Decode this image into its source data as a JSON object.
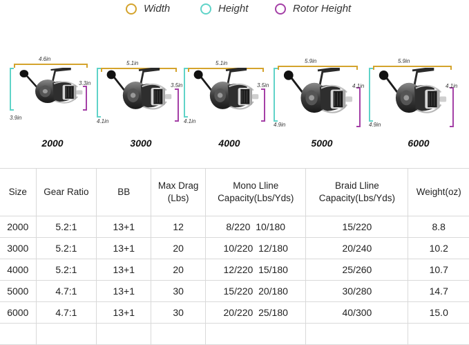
{
  "legend": [
    {
      "label": "Width",
      "color": "#d4a32c"
    },
    {
      "label": "Height",
      "color": "#5fd3c8"
    },
    {
      "label": "Rotor Height",
      "color": "#a43fa6"
    }
  ],
  "reels": [
    {
      "model": "2000",
      "width": "4.6in",
      "height": "3.9in",
      "rotor_height": "3.3in"
    },
    {
      "model": "3000",
      "width": "5.1in",
      "height": "4.1in",
      "rotor_height": "3.5in"
    },
    {
      "model": "4000",
      "width": "5.1in",
      "height": "4.1in",
      "rotor_height": "3.5in"
    },
    {
      "model": "5000",
      "width": "5.9in",
      "height": "4.9in",
      "rotor_height": "4.1in"
    },
    {
      "model": "6000",
      "width": "5.9in",
      "height": "4.9in",
      "rotor_height": "4.1in"
    }
  ],
  "table": {
    "headers": [
      "Size",
      "Gear Ratio",
      "BB",
      "Max Drag\n(Lbs)",
      "Mono Lline\nCapacity(Lbs/Yds)",
      "Braid Lline\nCapacity(Lbs/Yds)",
      "Weight(oz)"
    ],
    "rows": [
      [
        "2000",
        "5.2:1",
        "13+1",
        "12",
        "8/220  10/180",
        "15/220",
        "8.8"
      ],
      [
        "3000",
        "5.2:1",
        "13+1",
        "20",
        "10/220  12/180",
        "20/240",
        "10.2"
      ],
      [
        "4000",
        "5.2:1",
        "13+1",
        "20",
        "12/220  15/180",
        "25/260",
        "10.7"
      ],
      [
        "5000",
        "4.7:1",
        "13+1",
        "30",
        "15/220  20/180",
        "30/280",
        "14.7"
      ],
      [
        "6000",
        "4.7:1",
        "13+1",
        "30",
        "20/220  25/180",
        "40/300",
        "15.0"
      ]
    ]
  }
}
